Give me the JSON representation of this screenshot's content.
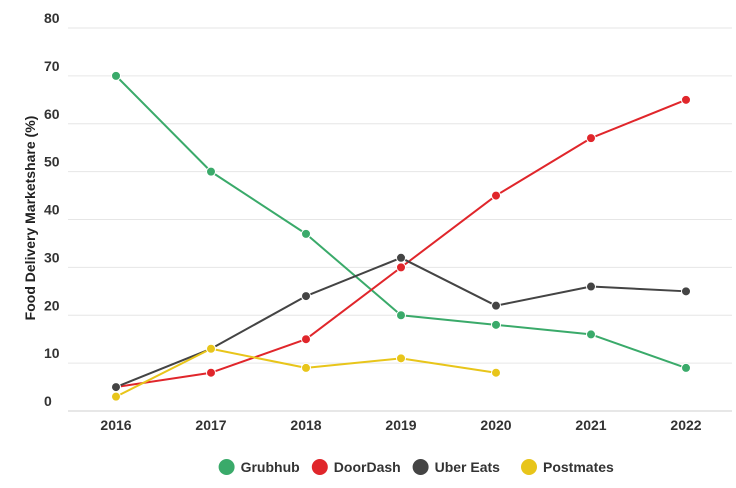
{
  "chart_data": {
    "type": "line",
    "title": "",
    "xlabel": "",
    "ylabel": "Food Delivery Marketshare (%)",
    "x": [
      "2016",
      "2017",
      "2018",
      "2019",
      "2020",
      "2021",
      "2022"
    ],
    "ylim": [
      0,
      80
    ],
    "yticks": [
      0,
      10,
      20,
      30,
      40,
      50,
      60,
      70,
      80
    ],
    "grid": true,
    "legend_position": "bottom",
    "series": [
      {
        "name": "Grubhub",
        "color": "#3aaa6a",
        "values": [
          70,
          50,
          37,
          20,
          18,
          16,
          9
        ]
      },
      {
        "name": "DoorDash",
        "color": "#e0262b",
        "values": [
          5,
          8,
          15,
          30,
          45,
          57,
          65
        ]
      },
      {
        "name": "Uber Eats",
        "color": "#444444",
        "values": [
          5,
          13,
          24,
          32,
          22,
          26,
          25
        ]
      },
      {
        "name": "Postmates",
        "color": "#e8c51a",
        "values": [
          3,
          13,
          9,
          11,
          8,
          null,
          null
        ]
      }
    ]
  }
}
